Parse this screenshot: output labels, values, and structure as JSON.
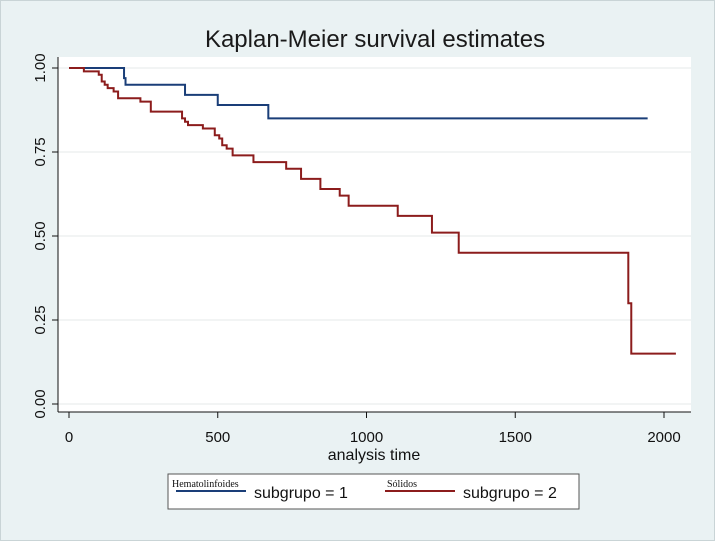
{
  "chart_data": {
    "type": "line",
    "title": "Kaplan-Meier survival estimates",
    "xlabel": "analysis time",
    "ylabel": "",
    "xlim": [
      0,
      2050
    ],
    "ylim": [
      0,
      1
    ],
    "xticks": [
      "0",
      "500",
      "1000",
      "1500",
      "2000"
    ],
    "yticks": [
      "0.00",
      "0.25",
      "0.50",
      "0.75",
      "1.00"
    ],
    "grid": true,
    "legend_position": "bottom",
    "series": [
      {
        "name": "subgrupo = 1",
        "legend_key_label": "Hematolinfoides",
        "color": "#1a3e78",
        "step": true,
        "x": [
          0,
          185,
          190,
          390,
          500,
          670,
          1945
        ],
        "y": [
          1.0,
          0.97,
          0.95,
          0.92,
          0.89,
          0.85,
          0.85
        ]
      },
      {
        "name": "subgrupo = 2",
        "legend_key_label": "Sólidos",
        "color": "#8c1c1c",
        "step": true,
        "x": [
          0,
          50,
          100,
          110,
          120,
          130,
          150,
          165,
          240,
          275,
          380,
          390,
          400,
          450,
          490,
          505,
          515,
          530,
          550,
          620,
          730,
          780,
          845,
          910,
          940,
          1105,
          1220,
          1310,
          1880,
          1890,
          2040
        ],
        "y": [
          1.0,
          0.99,
          0.98,
          0.96,
          0.95,
          0.94,
          0.93,
          0.91,
          0.9,
          0.87,
          0.85,
          0.84,
          0.83,
          0.82,
          0.8,
          0.79,
          0.77,
          0.76,
          0.74,
          0.72,
          0.7,
          0.67,
          0.64,
          0.62,
          0.59,
          0.56,
          0.51,
          0.45,
          0.3,
          0.15,
          0.15
        ]
      }
    ]
  }
}
